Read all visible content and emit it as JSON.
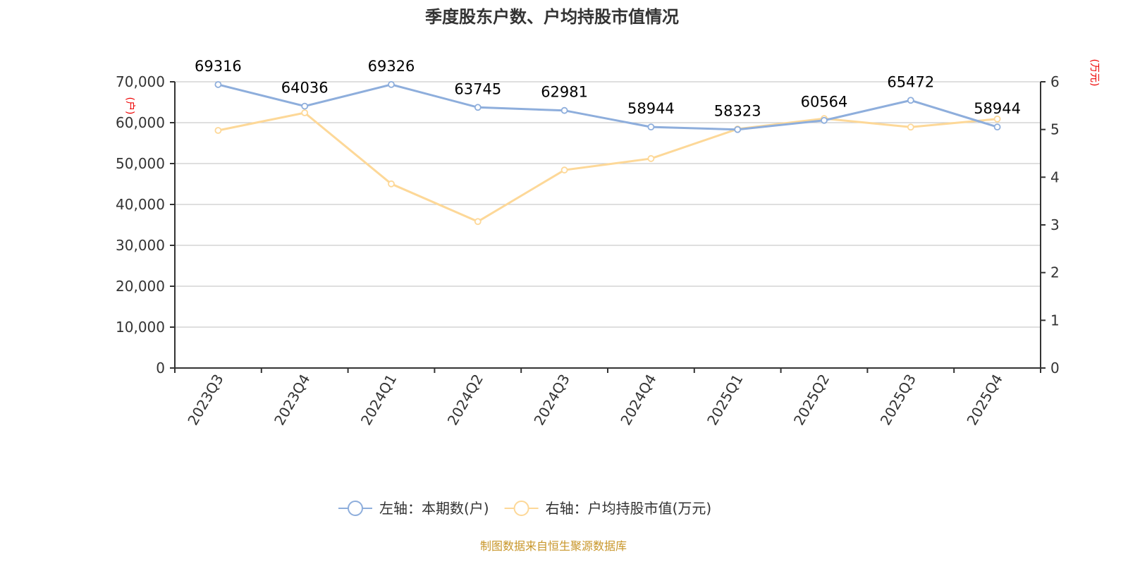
{
  "chart_data": {
    "type": "line",
    "title": "季度股东户数、户均持股市值情况",
    "categories": [
      "2023Q3",
      "2023Q4",
      "2024Q1",
      "2024Q2",
      "2024Q3",
      "2024Q4",
      "2025Q1",
      "2025Q2",
      "2025Q3",
      "2025Q4"
    ],
    "series": [
      {
        "name": "左轴：本期数(户)",
        "axis": "left",
        "color": "#8eaedc",
        "values": [
          69316,
          64036,
          69326,
          63745,
          62981,
          58944,
          58323,
          60564,
          65472,
          58944
        ],
        "show_labels": true
      },
      {
        "name": "右轴：户均持股市值(万元)",
        "axis": "right",
        "color": "#fdd898",
        "values": [
          4.98,
          5.35,
          3.86,
          3.07,
          4.15,
          4.39,
          5.01,
          5.23,
          5.05,
          5.22
        ],
        "show_labels": false
      }
    ],
    "left_axis": {
      "unit": "(户)",
      "ylim": [
        0,
        70000
      ],
      "ticks": [
        0,
        10000,
        20000,
        30000,
        40000,
        50000,
        60000,
        70000
      ],
      "tick_labels": [
        "0",
        "10,000",
        "20,000",
        "30,000",
        "40,000",
        "50,000",
        "60,000",
        "70,000"
      ]
    },
    "right_axis": {
      "unit": "(万元)",
      "ylim": [
        0,
        6
      ],
      "ticks": [
        0,
        1,
        2,
        3,
        4,
        5,
        6
      ],
      "tick_labels": [
        "0",
        "1",
        "2",
        "3",
        "4",
        "5",
        "6"
      ]
    },
    "grid": true,
    "legend_position": "bottom",
    "source": "制图数据来自恒生聚源数据库"
  }
}
